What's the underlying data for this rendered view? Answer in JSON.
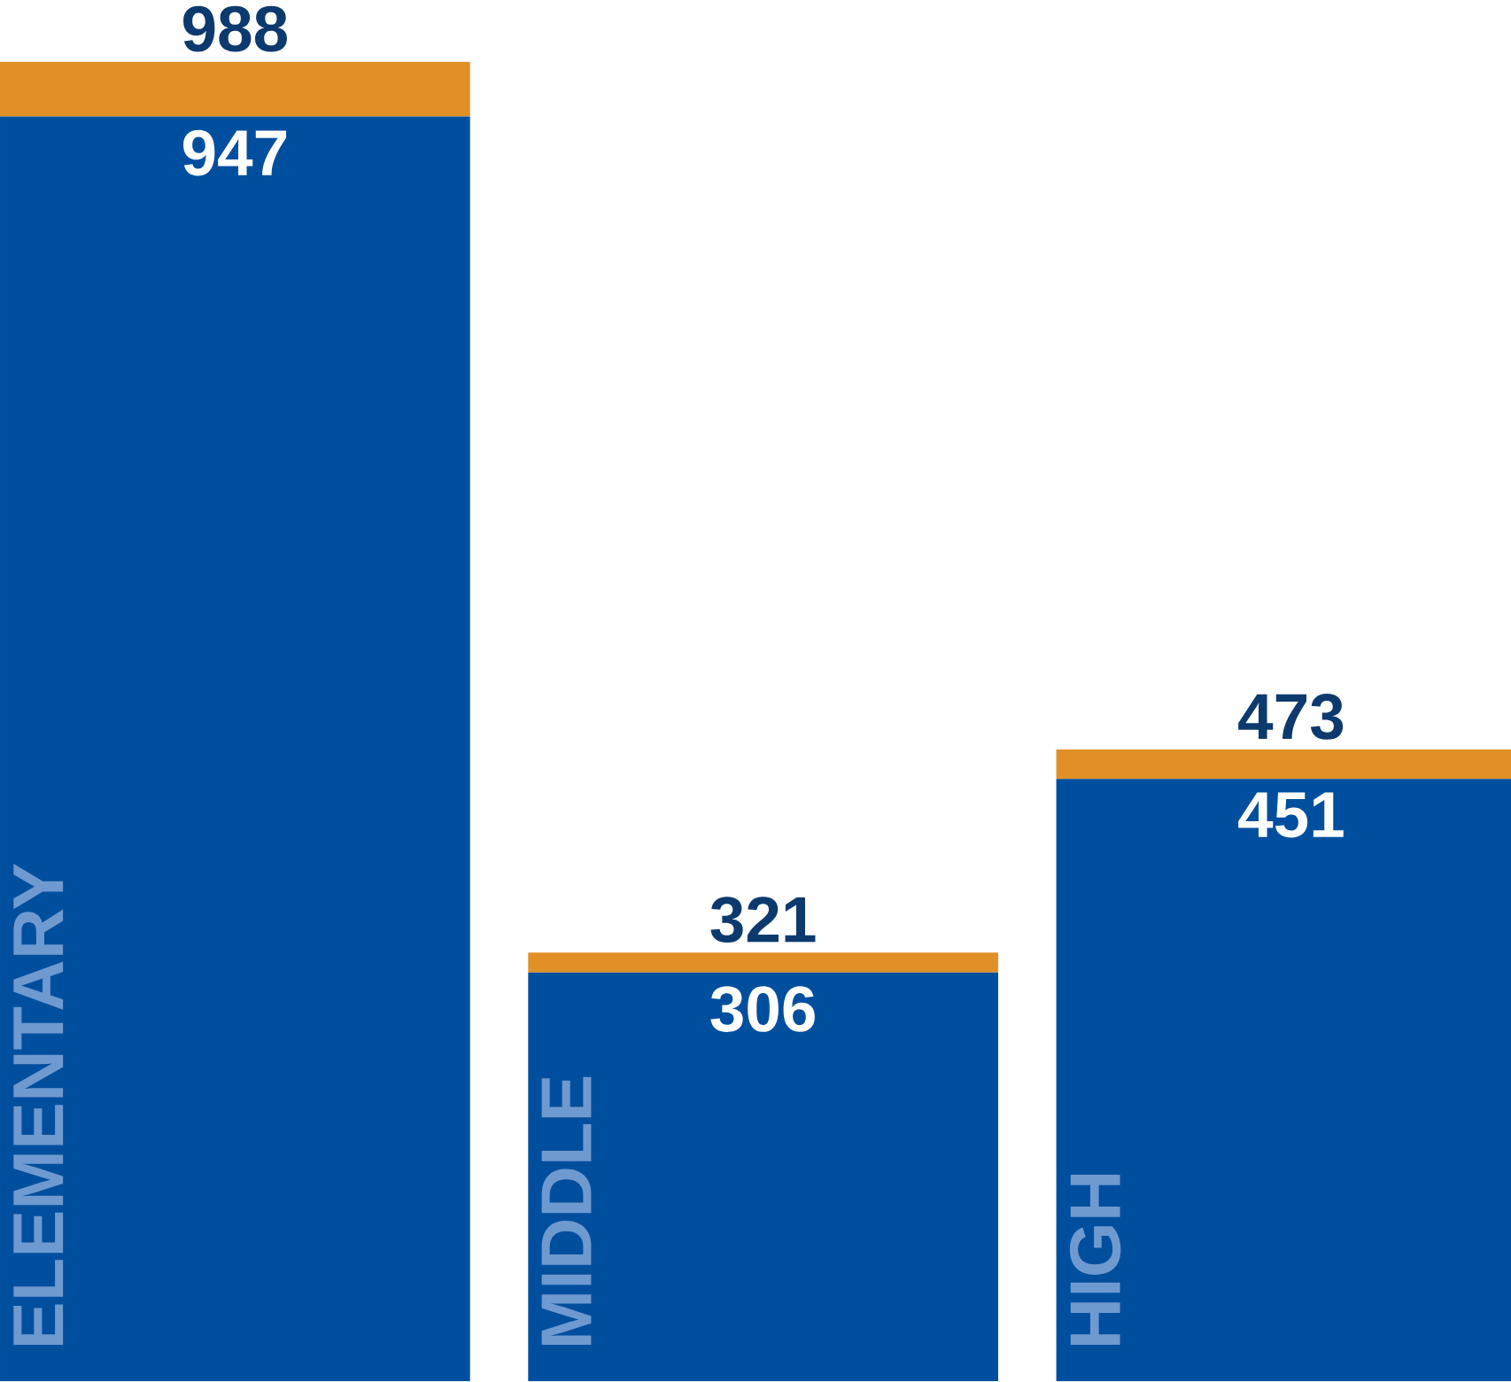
{
  "chart_data": {
    "type": "bar",
    "stacked": true,
    "categories": [
      "ELEMENTARY",
      "MIDDLE",
      "HIGH"
    ],
    "series": [
      {
        "color": "#004f9e",
        "values": [
          947,
          306,
          451
        ],
        "value_labels": [
          "947",
          "306",
          "451"
        ]
      },
      {
        "color": "#e09026",
        "values": [
          41,
          15,
          22
        ]
      }
    ],
    "totals": [
      "988",
      "321",
      "473"
    ]
  }
}
